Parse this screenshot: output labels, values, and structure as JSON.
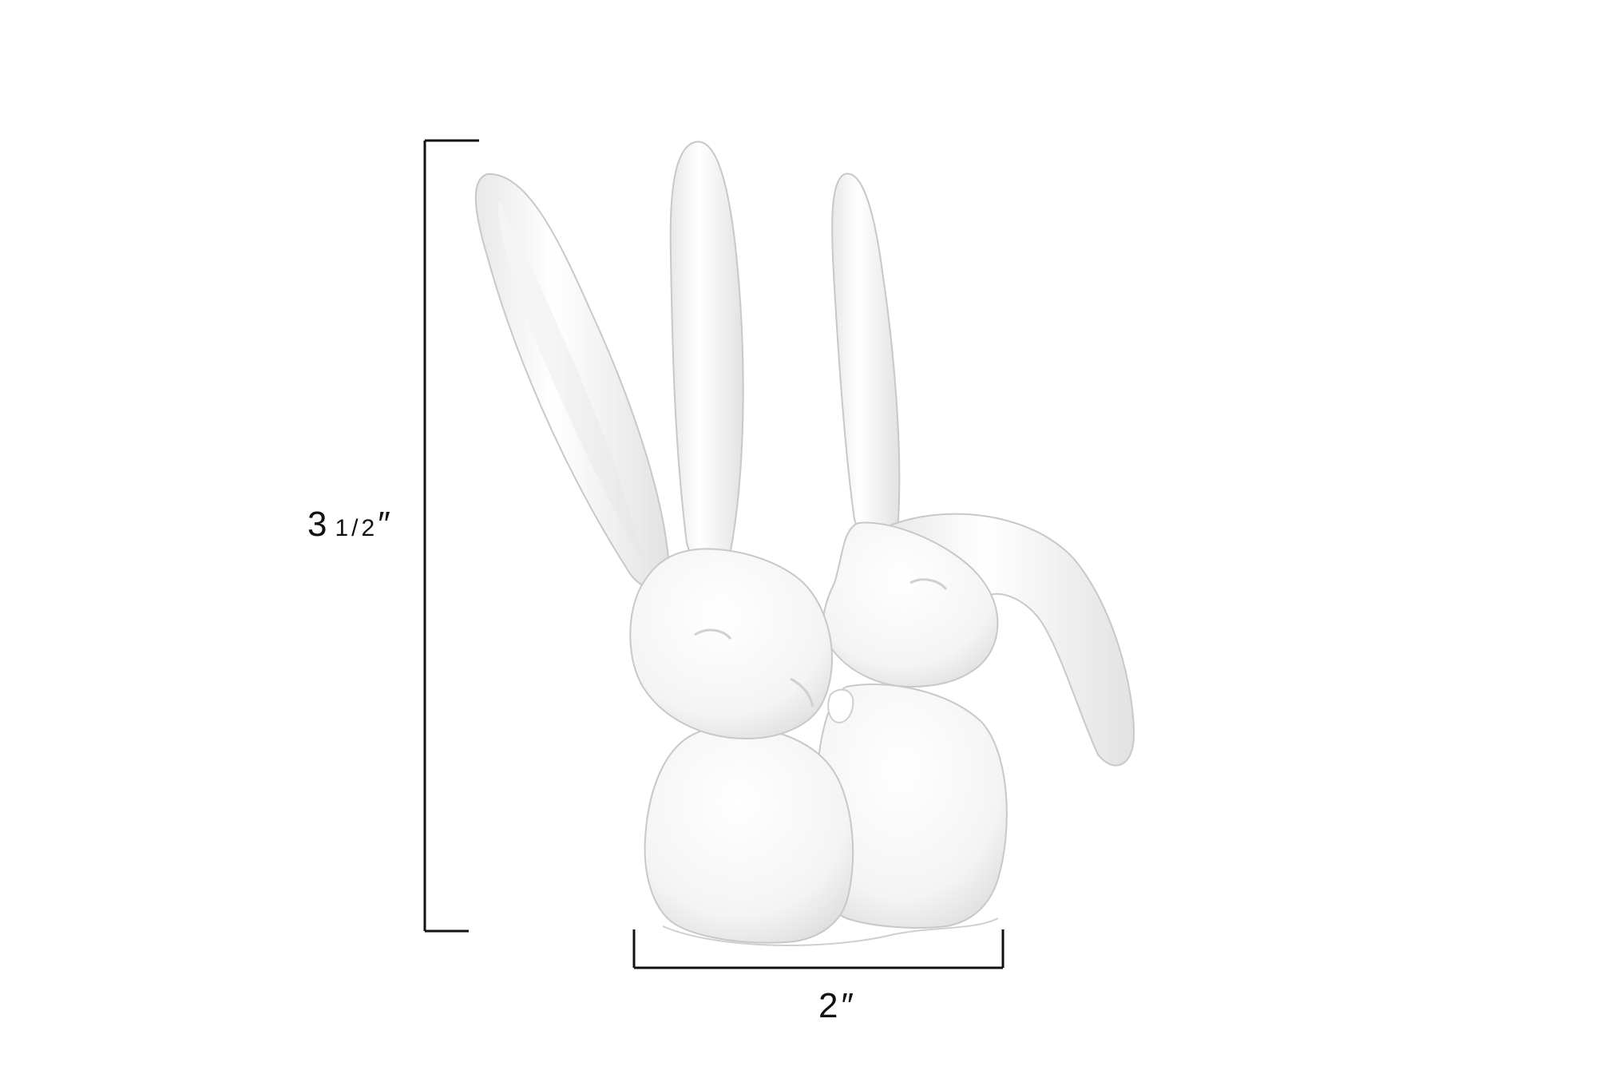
{
  "product": {
    "description_icon": "bunny-figurine",
    "color": "#ffffff"
  },
  "dimensions": {
    "height": {
      "whole": "3",
      "fraction": "1/2",
      "unit": "″"
    },
    "width": {
      "whole": "2",
      "unit": "″"
    },
    "line_color": "#111111"
  }
}
